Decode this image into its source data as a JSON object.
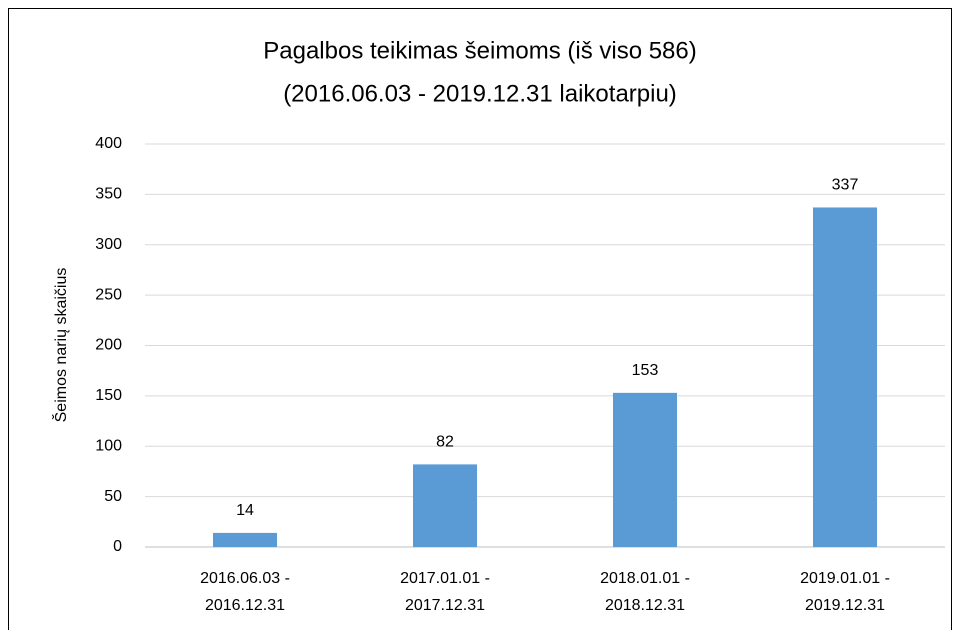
{
  "chart_data": {
    "type": "bar",
    "title": [
      "Pagalbos teikimas šeimoms (iš viso 586)",
      "(2016.06.03 - 2019.12.31 laikotarpiu)"
    ],
    "y_label": "Šeimos narių skaičius",
    "categories": [
      [
        "2016.06.03 -",
        "2016.12.31"
      ],
      [
        "2017.01.01 -",
        "2017.12.31"
      ],
      [
        "2018.01.01 -",
        "2018.12.31"
      ],
      [
        "2019.01.01 -",
        "2019.12.31"
      ]
    ],
    "values": [
      14,
      82,
      153,
      337
    ],
    "color": "#5b9bd5",
    "ylim": [
      0,
      400
    ],
    "yticks": [
      0,
      50,
      100,
      150,
      200,
      250,
      300,
      350,
      400
    ],
    "grid": true,
    "data_labels": true
  }
}
